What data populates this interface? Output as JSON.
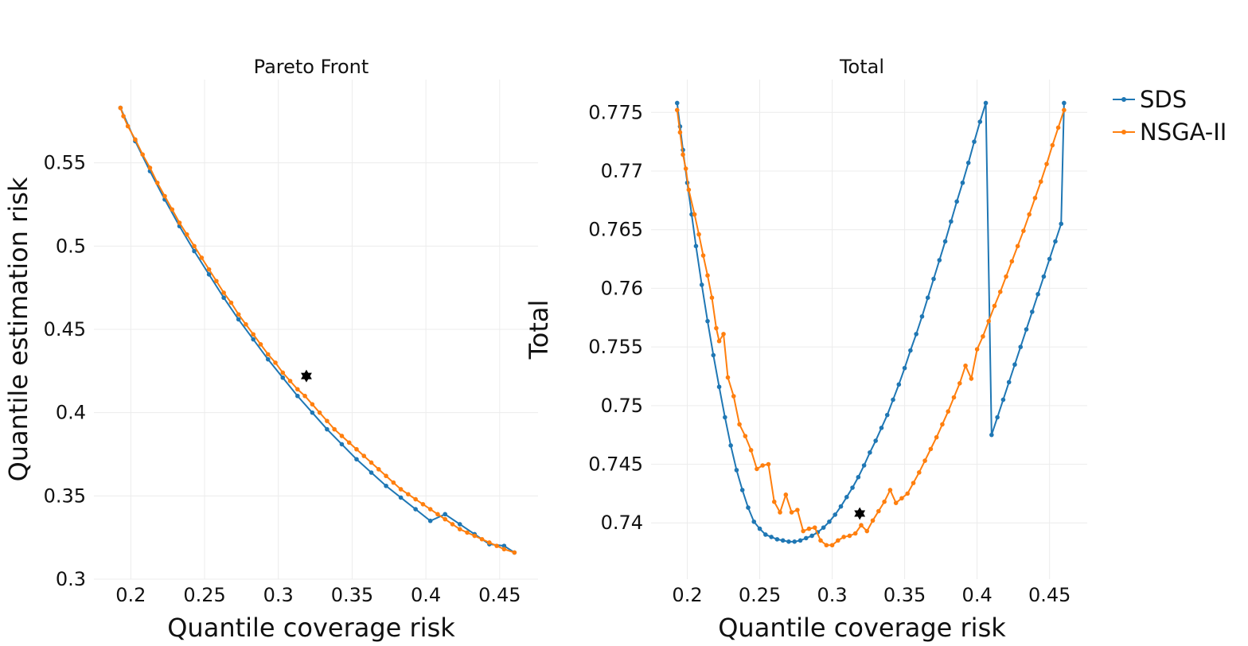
{
  "colors": {
    "sds": "#1f77b4",
    "nsga": "#ff7f0e",
    "star": "#000000"
  },
  "legend": [
    {
      "name": "SDS",
      "color": "#1f77b4"
    },
    {
      "name": "NSGA-II",
      "color": "#ff7f0e"
    }
  ],
  "chart_data": [
    {
      "type": "line",
      "title": "Pareto Front",
      "xlabel": "Quantile coverage risk",
      "ylabel": "Quantile estimation risk",
      "xlim": [
        0.175,
        0.476
      ],
      "ylim": [
        0.3,
        0.6
      ],
      "xticks": [
        0.2,
        0.25,
        0.3,
        0.35,
        0.4,
        0.45
      ],
      "xtick_labels": [
        "0.2",
        "0.25",
        "0.3",
        "0.35",
        "0.4",
        "0.45"
      ],
      "yticks": [
        0.3,
        0.35,
        0.4,
        0.45,
        0.5,
        0.55
      ],
      "ytick_labels": [
        "0.3",
        "0.35",
        "0.4",
        "0.45",
        "0.5",
        "0.55"
      ],
      "grid": true,
      "series": [
        {
          "name": "SDS",
          "x": [
            0.193,
            0.203,
            0.213,
            0.223,
            0.233,
            0.243,
            0.253,
            0.263,
            0.273,
            0.283,
            0.293,
            0.303,
            0.313,
            0.323,
            0.333,
            0.343,
            0.353,
            0.363,
            0.373,
            0.383,
            0.393,
            0.403,
            0.413,
            0.423,
            0.433,
            0.443,
            0.453,
            0.46
          ],
          "y": [
            0.583,
            0.563,
            0.545,
            0.528,
            0.512,
            0.497,
            0.483,
            0.469,
            0.456,
            0.444,
            0.432,
            0.421,
            0.41,
            0.4,
            0.39,
            0.381,
            0.372,
            0.364,
            0.356,
            0.349,
            0.342,
            0.335,
            0.339,
            0.333,
            0.327,
            0.321,
            0.32,
            0.316
          ]
        },
        {
          "name": "NSGA-II",
          "x": [
            0.193,
            0.195,
            0.198,
            0.203,
            0.208,
            0.213,
            0.218,
            0.223,
            0.228,
            0.233,
            0.238,
            0.243,
            0.248,
            0.253,
            0.258,
            0.263,
            0.268,
            0.273,
            0.278,
            0.283,
            0.288,
            0.293,
            0.298,
            0.303,
            0.308,
            0.313,
            0.318,
            0.323,
            0.328,
            0.333,
            0.338,
            0.343,
            0.348,
            0.353,
            0.358,
            0.363,
            0.368,
            0.373,
            0.378,
            0.383,
            0.388,
            0.393,
            0.398,
            0.403,
            0.408,
            0.413,
            0.418,
            0.423,
            0.428,
            0.433,
            0.438,
            0.443,
            0.448,
            0.453,
            0.46
          ],
          "y": [
            0.583,
            0.578,
            0.572,
            0.564,
            0.555,
            0.547,
            0.538,
            0.53,
            0.522,
            0.514,
            0.507,
            0.5,
            0.493,
            0.486,
            0.479,
            0.472,
            0.466,
            0.459,
            0.453,
            0.447,
            0.441,
            0.435,
            0.43,
            0.424,
            0.419,
            0.414,
            0.41,
            0.405,
            0.4,
            0.395,
            0.39,
            0.386,
            0.382,
            0.378,
            0.374,
            0.37,
            0.366,
            0.362,
            0.358,
            0.354,
            0.351,
            0.348,
            0.345,
            0.342,
            0.339,
            0.336,
            0.333,
            0.33,
            0.328,
            0.326,
            0.324,
            0.322,
            0.32,
            0.318,
            0.316
          ]
        }
      ],
      "marker": {
        "x": 0.319,
        "y": 0.422
      }
    },
    {
      "type": "line",
      "title": "Total",
      "xlabel": "Quantile coverage risk",
      "ylabel": "Total",
      "xlim": [
        0.175,
        0.476
      ],
      "ylim": [
        0.7352,
        0.7778
      ],
      "xticks": [
        0.2,
        0.25,
        0.3,
        0.35,
        0.4,
        0.45
      ],
      "xtick_labels": [
        "0.2",
        "0.25",
        "0.3",
        "0.35",
        "0.4",
        "0.45"
      ],
      "yticks": [
        0.74,
        0.745,
        0.75,
        0.755,
        0.76,
        0.765,
        0.77,
        0.775
      ],
      "ytick_labels": [
        "0.74",
        "0.745",
        "0.75",
        "0.755",
        "0.76",
        "0.765",
        "0.77",
        "0.775"
      ],
      "grid": true,
      "series": [
        {
          "name": "SDS",
          "x": [
            0.193,
            0.195,
            0.197,
            0.2,
            0.203,
            0.206,
            0.21,
            0.214,
            0.218,
            0.222,
            0.226,
            0.23,
            0.234,
            0.238,
            0.242,
            0.246,
            0.25,
            0.254,
            0.258,
            0.262,
            0.266,
            0.27,
            0.274,
            0.278,
            0.282,
            0.286,
            0.29,
            0.294,
            0.298,
            0.302,
            0.306,
            0.31,
            0.314,
            0.318,
            0.322,
            0.326,
            0.33,
            0.334,
            0.338,
            0.342,
            0.346,
            0.35,
            0.354,
            0.358,
            0.362,
            0.366,
            0.37,
            0.374,
            0.378,
            0.382,
            0.386,
            0.39,
            0.394,
            0.398,
            0.402,
            0.406,
            0.41,
            0.414,
            0.418,
            0.422,
            0.426,
            0.43,
            0.434,
            0.438,
            0.442,
            0.446,
            0.45,
            0.454,
            0.458,
            0.46
          ],
          "y": [
            0.7758,
            0.7738,
            0.7718,
            0.769,
            0.7663,
            0.7636,
            0.7603,
            0.7572,
            0.7543,
            0.7516,
            0.749,
            0.7466,
            0.7445,
            0.7428,
            0.7413,
            0.7401,
            0.7395,
            0.739,
            0.7388,
            0.7386,
            0.7385,
            0.7384,
            0.7384,
            0.7385,
            0.7387,
            0.7389,
            0.7392,
            0.7396,
            0.7401,
            0.7407,
            0.7414,
            0.7422,
            0.743,
            0.7439,
            0.7449,
            0.746,
            0.747,
            0.7481,
            0.7492,
            0.7505,
            0.7518,
            0.7532,
            0.7547,
            0.7561,
            0.7576,
            0.7592,
            0.7608,
            0.7624,
            0.764,
            0.7657,
            0.7674,
            0.769,
            0.7707,
            0.7725,
            0.7742,
            0.7758,
            0.7475,
            0.749,
            0.7505,
            0.752,
            0.7535,
            0.755,
            0.7565,
            0.758,
            0.7595,
            0.761,
            0.7625,
            0.764,
            0.7655,
            0.7758
          ]
        },
        {
          "name": "NSGA-II",
          "x": [
            0.193,
            0.195,
            0.197,
            0.199,
            0.201,
            0.205,
            0.208,
            0.211,
            0.214,
            0.217,
            0.22,
            0.222,
            0.225,
            0.228,
            0.232,
            0.236,
            0.24,
            0.244,
            0.248,
            0.252,
            0.256,
            0.26,
            0.264,
            0.268,
            0.272,
            0.276,
            0.28,
            0.284,
            0.288,
            0.292,
            0.296,
            0.3,
            0.304,
            0.308,
            0.312,
            0.316,
            0.32,
            0.324,
            0.328,
            0.332,
            0.336,
            0.34,
            0.344,
            0.348,
            0.352,
            0.356,
            0.36,
            0.364,
            0.368,
            0.372,
            0.376,
            0.38,
            0.384,
            0.388,
            0.392,
            0.396,
            0.4,
            0.404,
            0.408,
            0.412,
            0.416,
            0.42,
            0.424,
            0.428,
            0.432,
            0.436,
            0.44,
            0.444,
            0.448,
            0.452,
            0.456,
            0.46
          ],
          "y": [
            0.7752,
            0.7733,
            0.7714,
            0.7702,
            0.7684,
            0.7663,
            0.7646,
            0.7628,
            0.7611,
            0.7592,
            0.7566,
            0.7555,
            0.7561,
            0.7524,
            0.7508,
            0.7484,
            0.7474,
            0.7462,
            0.7446,
            0.7449,
            0.745,
            0.7418,
            0.7409,
            0.7424,
            0.7409,
            0.7411,
            0.7393,
            0.7395,
            0.7396,
            0.7385,
            0.7381,
            0.7381,
            0.7385,
            0.7388,
            0.7389,
            0.7391,
            0.7398,
            0.7393,
            0.7402,
            0.741,
            0.7418,
            0.7428,
            0.7417,
            0.7421,
            0.7425,
            0.7434,
            0.7443,
            0.7453,
            0.7463,
            0.7473,
            0.7484,
            0.7495,
            0.7507,
            0.7519,
            0.7534,
            0.7523,
            0.7548,
            0.7559,
            0.7572,
            0.7585,
            0.7597,
            0.761,
            0.7623,
            0.7636,
            0.7649,
            0.7663,
            0.7677,
            0.7691,
            0.7706,
            0.7722,
            0.7737,
            0.7752
          ]
        }
      ],
      "marker": {
        "x": 0.319,
        "y": 0.7408
      }
    }
  ]
}
